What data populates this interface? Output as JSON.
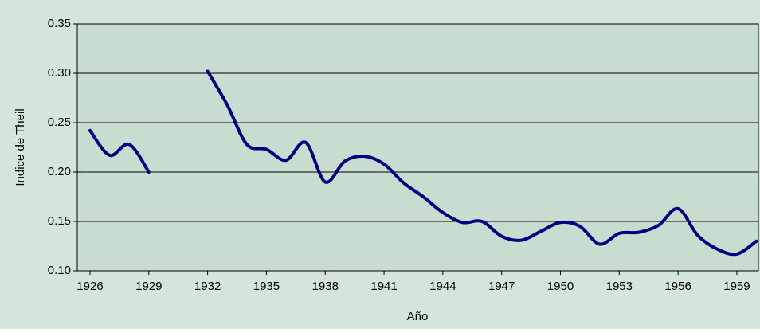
{
  "chart_data": {
    "type": "line",
    "x_label": "Año",
    "y_label": "Indice de Theil",
    "x": [
      1926,
      1927,
      1928,
      1929,
      1930,
      1931,
      1932,
      1933,
      1934,
      1935,
      1936,
      1937,
      1938,
      1939,
      1940,
      1941,
      1942,
      1943,
      1944,
      1945,
      1946,
      1947,
      1948,
      1949,
      1950,
      1951,
      1952,
      1953,
      1954,
      1955,
      1956,
      1957,
      1958,
      1959,
      1960
    ],
    "series": [
      {
        "name": "Indice de Theil",
        "color": "#000080",
        "values": [
          0.242,
          0.217,
          0.228,
          0.2,
          null,
          null,
          0.302,
          0.268,
          0.228,
          0.223,
          0.212,
          0.23,
          0.19,
          0.211,
          0.216,
          0.208,
          0.189,
          0.175,
          0.159,
          0.149,
          0.15,
          0.135,
          0.131,
          0.14,
          0.149,
          0.145,
          0.127,
          0.138,
          0.139,
          0.146,
          0.163,
          0.136,
          0.122,
          0.117,
          0.13
        ]
      }
    ],
    "xlim": [
      1925.35,
      1960.1
    ],
    "xticks": [
      1926,
      1929,
      1932,
      1935,
      1938,
      1941,
      1944,
      1947,
      1950,
      1953,
      1956,
      1959
    ],
    "ylim": [
      0.1,
      0.35
    ],
    "yticks": [
      {
        "value": 0.1,
        "label": "0.10"
      },
      0.15,
      {
        "value": 0.2,
        "label": "0.20"
      },
      0.25,
      {
        "value": 0.3,
        "label": "0.30"
      },
      0.35
    ],
    "grid": true,
    "smooth": true
  }
}
